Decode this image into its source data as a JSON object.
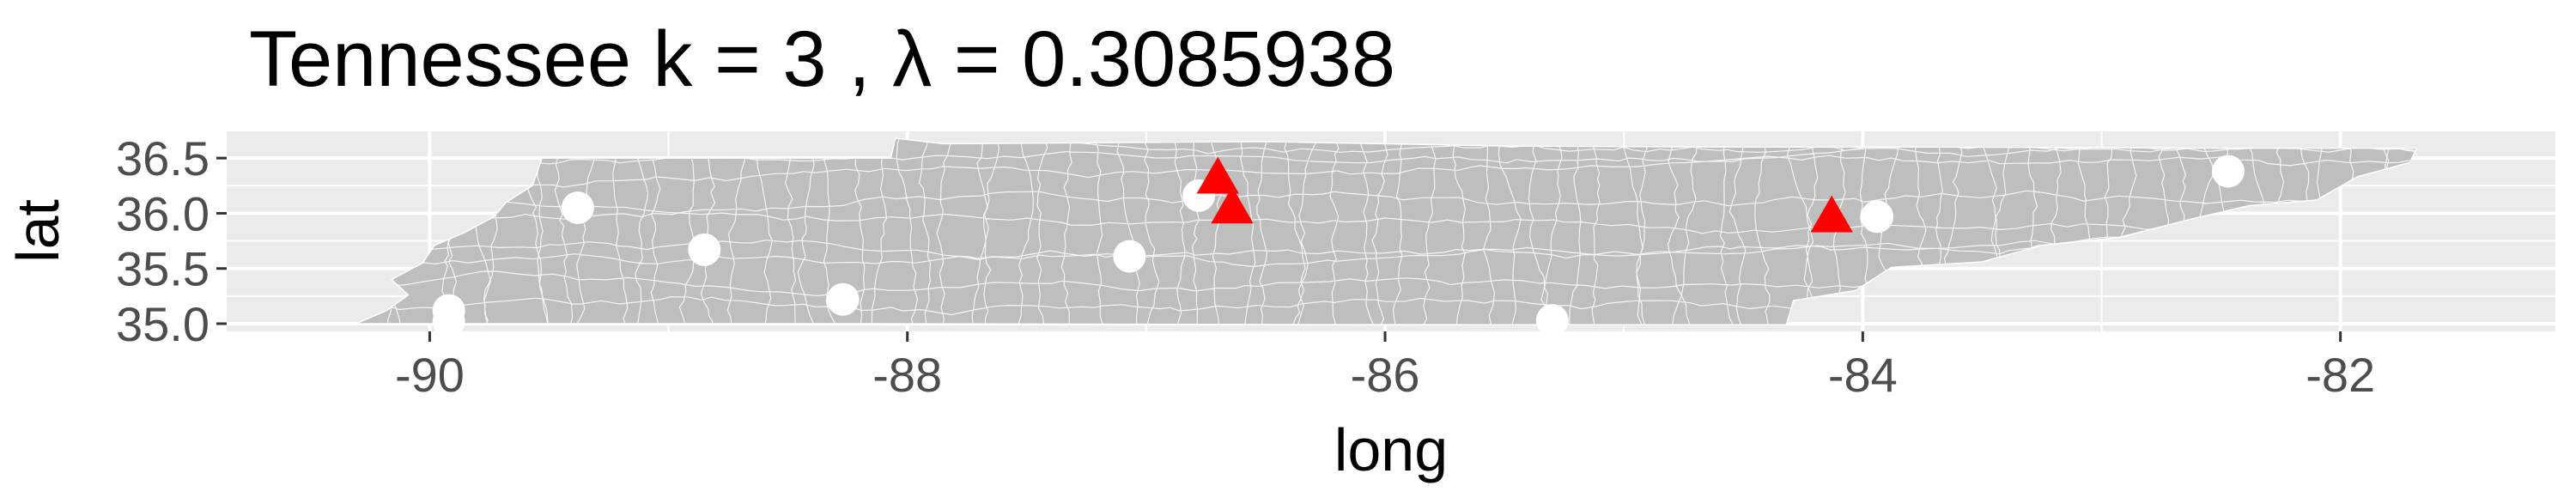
{
  "chart_data": {
    "type": "scatter",
    "title": "Tennessee  k =  3 ,  λ  =  0.3085938",
    "xlabel": "long",
    "ylabel": "lat",
    "xlim": [
      -90.85,
      -81.1
    ],
    "ylim": [
      34.93,
      36.75
    ],
    "xticks": [
      -90,
      -88,
      -86,
      -84,
      -82
    ],
    "yticks": [
      35.0,
      35.5,
      36.0,
      36.5
    ],
    "xtick_labels": [
      "-90",
      "-88",
      "-86",
      "-84",
      "-82"
    ],
    "ytick_labels": [
      "35.0",
      "35.5",
      "36.0",
      "36.5"
    ],
    "grid": true,
    "colors": {
      "panel": "#ebebeb",
      "grid": "#ffffff",
      "map_fill": "#bebebe",
      "county_lines": "#ffffff",
      "points": "#ffffff",
      "centers": "#ff0000"
    },
    "series": [
      {
        "marker": "circle",
        "color": "#ffffff",
        "points": [
          {
            "x": -89.92,
            "y": 35.12
          },
          {
            "x": -89.92,
            "y": 35.02
          },
          {
            "x": -89.38,
            "y": 36.05
          },
          {
            "x": -88.85,
            "y": 35.67
          },
          {
            "x": -88.27,
            "y": 35.22
          },
          {
            "x": -87.07,
            "y": 35.61
          },
          {
            "x": -86.78,
            "y": 36.16
          },
          {
            "x": -85.3,
            "y": 35.03
          },
          {
            "x": -83.94,
            "y": 35.97
          },
          {
            "x": -82.47,
            "y": 36.38
          }
        ]
      },
      {
        "marker": "triangle",
        "color": "#ff0000",
        "points": [
          {
            "x": -86.7,
            "y": 36.31
          },
          {
            "x": -86.64,
            "y": 36.04
          },
          {
            "x": -84.13,
            "y": 35.96
          }
        ]
      }
    ]
  }
}
